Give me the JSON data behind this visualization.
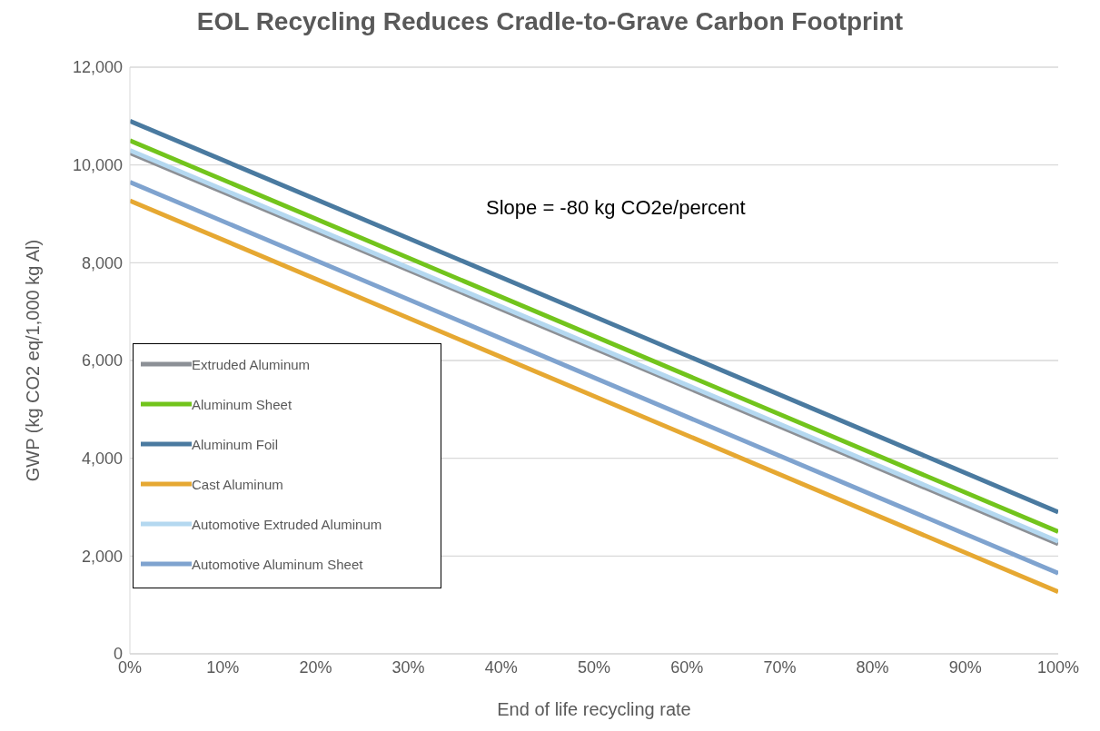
{
  "chart_data": {
    "type": "line",
    "title": "EOL Recycling Reduces Cradle-to-Grave Carbon Footprint",
    "xlabel": "End of life recycling rate",
    "ylabel": "GWP  (kg CO2 eq/1,000 kg Al)",
    "annotations": [
      "Slope = -80 kg CO2e/percent"
    ],
    "x": [
      0,
      100
    ],
    "series": [
      {
        "name": "Extruded Aluminum",
        "color": "#8c9096",
        "values": [
          10250,
          2250
        ]
      },
      {
        "name": "Aluminum Sheet",
        "color": "#72c41c",
        "values": [
          10500,
          2500
        ]
      },
      {
        "name": "Aluminum Foil",
        "color": "#4a7aa0",
        "values": [
          10900,
          2900
        ]
      },
      {
        "name": "Cast Aluminum",
        "color": "#e6a832",
        "values": [
          9270,
          1270
        ]
      },
      {
        "name": "Automotive Extruded Aluminum",
        "color": "#b4d8f0",
        "values": [
          10300,
          2300
        ]
      },
      {
        "name": "Automotive Aluminum Sheet",
        "color": "#7fa3cf",
        "values": [
          9650,
          1650
        ]
      }
    ],
    "xlim": [
      0,
      100
    ],
    "xticks": [
      {
        "value": 0,
        "label": "0%"
      },
      {
        "value": 10,
        "label": "10%"
      },
      {
        "value": 20,
        "label": "20%"
      },
      {
        "value": 30,
        "label": "30%"
      },
      {
        "value": 40,
        "label": "40%"
      },
      {
        "value": 50,
        "label": "50%"
      },
      {
        "value": 60,
        "label": "60%"
      },
      {
        "value": 70,
        "label": "70%"
      },
      {
        "value": 80,
        "label": "80%"
      },
      {
        "value": 90,
        "label": "90%"
      },
      {
        "value": 100,
        "label": "100%"
      }
    ],
    "ylim": [
      0,
      12000
    ],
    "yticks": [
      {
        "value": 0,
        "label": "0"
      },
      {
        "value": 2000,
        "label": "2,000"
      },
      {
        "value": 4000,
        "label": "4,000"
      },
      {
        "value": 6000,
        "label": "6,000"
      },
      {
        "value": 8000,
        "label": "8,000"
      },
      {
        "value": 10000,
        "label": "10,000"
      },
      {
        "value": 12000,
        "label": "12,000"
      }
    ],
    "grid": "y",
    "legend": "left",
    "marker": "none",
    "line_style": "solid"
  }
}
